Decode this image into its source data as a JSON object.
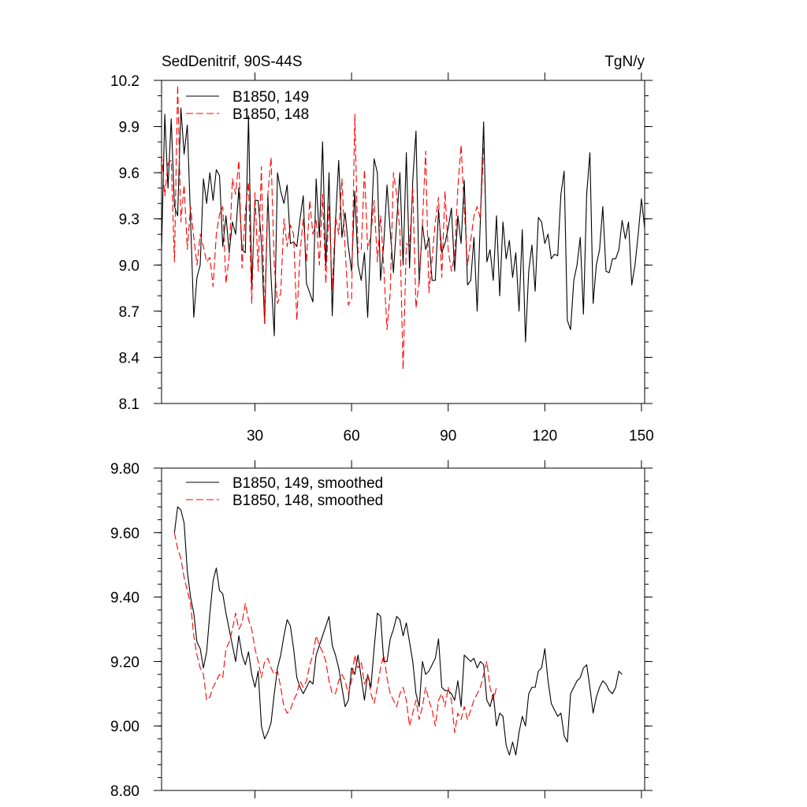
{
  "colors": {
    "black": "#000000",
    "red": "#ff0000",
    "background": "#ffffff"
  },
  "chart_data": [
    {
      "type": "line",
      "title": "SedDenitrif, 90S-44S",
      "units": "TgN/y",
      "xlim": [
        1,
        151
      ],
      "ylim": [
        8.1,
        10.2
      ],
      "x_ticks": [
        30,
        60,
        90,
        120,
        150
      ],
      "x_tick_labels": [
        "30",
        "60",
        "90",
        "120",
        "150"
      ],
      "y_ticks": [
        8.1,
        8.4,
        8.7,
        9.0,
        9.3,
        9.6,
        9.9,
        10.2
      ],
      "y_tick_labels": [
        "8.1",
        "8.4",
        "8.7",
        "9.0",
        "9.3",
        "9.6",
        "9.9",
        "10.2"
      ],
      "legend_position": "top-left",
      "series": [
        {
          "name": "B1850, 149",
          "color": "#000000",
          "dash": "solid",
          "x_start": 1,
          "values": [
            9.1,
            9.98,
            9.5,
            9.95,
            9.38,
            9.32,
            10.02,
            9.72,
            9.91,
            9.3,
            8.66,
            8.92,
            9.0,
            9.56,
            9.4,
            9.6,
            9.42,
            9.62,
            9.58,
            9.12,
            9.32,
            9.08,
            9.28,
            9.2,
            9.5,
            9.1,
            9.08,
            9.97,
            8.86,
            9.42,
            9.42,
            9.15,
            8.62,
            9.46,
            8.92,
            8.54,
            9.6,
            9.48,
            9.4,
            9.52,
            9.14,
            9.15,
            9.12,
            9.3,
            9.45,
            8.88,
            8.82,
            8.76,
            9.56,
            9.18,
            9.8,
            9.0,
            9.6,
            8.67,
            9.28,
            9.68,
            9.18,
            9.34,
            9.12,
            8.96,
            9.48,
            9.0,
            8.9,
            9.08,
            8.66,
            9.2,
            9.69,
            9.6,
            8.9,
            9.14,
            9.52,
            9.22,
            8.95,
            9.28,
            9.6,
            9.0,
            9.73,
            8.98,
            9.55,
            9.87,
            8.88,
            9.26,
            9.1,
            9.18,
            8.9,
            8.9,
            9.36,
            9.08,
            9.14,
            9.24,
            9.37,
            8.96,
            9.32,
            9.14,
            9.55,
            8.87,
            8.9,
            9.18,
            8.7,
            9.3,
            9.93,
            9.02,
            9.1,
            8.9,
            9.32,
            8.8,
            9.28,
            9.04,
            9.16,
            8.92,
            9.08,
            8.7,
            9.23,
            8.5,
            8.96,
            9.13,
            8.83,
            9.31,
            9.28,
            9.14,
            9.2,
            9.04,
            9.07,
            9.06,
            9.46,
            9.61,
            8.64,
            8.58,
            8.9,
            9.0,
            9.18,
            8.68,
            9.46,
            9.73,
            8.75,
            9.0,
            9.1,
            9.38,
            8.96,
            8.95,
            9.04,
            9.04,
            9.1,
            9.29,
            9.17,
            9.28,
            8.87,
            9.0,
            9.2,
            9.43,
            9.24
          ]
        },
        {
          "name": "B1850, 148",
          "color": "#ff0000",
          "dash": "dashed",
          "x_start": 1,
          "values": [
            9.72,
            9.45,
            9.66,
            9.68,
            9.02,
            10.17,
            9.28,
            9.52,
            9.1,
            9.38,
            9.18,
            9.0,
            9.2,
            9.12,
            9.02,
            9.05,
            8.86,
            9.2,
            9.33,
            9.38,
            8.88,
            9.06,
            9.56,
            9.46,
            9.68,
            8.98,
            9.35,
            9.54,
            8.75,
            9.47,
            8.96,
            9.64,
            8.62,
            9.46,
            9.7,
            9.0,
            8.75,
            8.82,
            9.3,
            9.12,
            9.26,
            9.2,
            8.64,
            9.08,
            9.3,
            9.02,
            9.42,
            9.2,
            9.3,
            9.0,
            9.46,
            8.88,
            9.38,
            8.84,
            9.32,
            9.2,
            9.56,
            9.1,
            8.74,
            8.78,
            9.98,
            9.08,
            9.1,
            9.62,
            9.1,
            9.2,
            9.42,
            9.02,
            9.32,
            8.98,
            8.58,
            8.82,
            9.6,
            9.46,
            9.22,
            8.32,
            9.14,
            9.12,
            9.5,
            8.72,
            8.9,
            9.27,
            9.74,
            8.82,
            9.04,
            9.28,
            9.44,
            8.92,
            9.48,
            9.1,
            8.96,
            9.06,
            9.5,
            9.78,
            9.36,
            9.0,
            9.16,
            9.32,
            9.38,
            9.3,
            9.76
          ]
        }
      ]
    },
    {
      "type": "line",
      "xlim": [
        1,
        151
      ],
      "ylim": [
        8.8,
        9.8
      ],
      "y_ticks": [
        8.8,
        9.0,
        9.2,
        9.4,
        9.6,
        9.8
      ],
      "y_tick_labels": [
        "8.80",
        "9.00",
        "9.20",
        "9.40",
        "9.60",
        "9.80"
      ],
      "legend_position": "top-left",
      "series": [
        {
          "name": "B1850, 149, smoothed",
          "color": "#000000",
          "dash": "solid",
          "x_start": 5,
          "values": [
            9.6,
            9.68,
            9.67,
            9.63,
            9.48,
            9.4,
            9.35,
            9.26,
            9.24,
            9.18,
            9.23,
            9.35,
            9.45,
            9.49,
            9.42,
            9.41,
            9.35,
            9.3,
            9.25,
            9.2,
            9.28,
            9.22,
            9.19,
            9.23,
            9.16,
            9.12,
            9.17,
            9.0,
            8.96,
            8.98,
            9.01,
            9.1,
            9.18,
            9.22,
            9.28,
            9.33,
            9.31,
            9.24,
            9.15,
            9.12,
            9.1,
            9.12,
            9.14,
            9.13,
            9.22,
            9.25,
            9.28,
            9.31,
            9.34,
            9.25,
            9.22,
            9.18,
            9.12,
            9.06,
            9.08,
            9.18,
            9.16,
            9.22,
            9.15,
            9.08,
            9.16,
            9.12,
            9.24,
            9.35,
            9.34,
            9.2,
            9.2,
            9.27,
            9.3,
            9.34,
            9.33,
            9.28,
            9.32,
            9.26,
            9.2,
            9.1,
            9.06,
            9.2,
            9.16,
            9.17,
            9.19,
            9.21,
            9.27,
            9.12,
            9.11,
            9.11,
            9.1,
            9.08,
            9.14,
            9.06,
            9.22,
            9.21,
            9.2,
            9.21,
            9.18,
            9.2,
            9.19,
            9.08,
            9.06,
            9.1,
            9.0,
            9.04,
            9.03,
            8.94,
            8.91,
            8.95,
            8.91,
            8.98,
            9.03,
            9.0,
            9.1,
            9.12,
            9.12,
            9.17,
            9.18,
            9.24,
            9.14,
            9.07,
            9.05,
            9.03,
            9.04,
            8.97,
            8.95,
            9.1,
            9.12,
            9.14,
            9.15,
            9.18,
            9.19,
            9.12,
            9.04,
            9.09,
            9.12,
            9.14,
            9.13,
            9.11,
            9.1,
            9.12,
            9.17,
            9.16
          ]
        },
        {
          "name": "B1850, 148, smoothed",
          "color": "#ff0000",
          "dash": "dashed",
          "x_start": 5,
          "values": [
            9.6,
            9.55,
            9.52,
            9.46,
            9.42,
            9.38,
            9.28,
            9.22,
            9.18,
            9.16,
            9.08,
            9.09,
            9.12,
            9.14,
            9.16,
            9.15,
            9.24,
            9.26,
            9.3,
            9.35,
            9.3,
            9.32,
            9.38,
            9.33,
            9.3,
            9.24,
            9.2,
            9.15,
            9.2,
            9.21,
            9.18,
            9.16,
            9.17,
            9.12,
            9.06,
            9.04,
            9.05,
            9.08,
            9.1,
            9.14,
            9.12,
            9.14,
            9.19,
            9.22,
            9.28,
            9.25,
            9.23,
            9.2,
            9.14,
            9.1,
            9.1,
            9.14,
            9.16,
            9.14,
            9.1,
            9.14,
            9.22,
            9.18,
            9.2,
            9.13,
            9.16,
            9.1,
            9.07,
            9.12,
            9.18,
            9.22,
            9.15,
            9.1,
            9.08,
            9.06,
            9.1,
            9.12,
            9.08,
            9.0,
            9.04,
            9.08,
            9.02,
            9.06,
            9.12,
            9.08,
            9.05,
            9.0,
            9.08,
            9.1,
            9.06,
            9.12,
            9.08,
            8.98,
            9.04,
            9.02,
            9.06,
            9.02,
            9.05,
            9.08,
            9.1,
            9.12,
            9.16,
            9.2,
            9.12,
            9.08,
            9.12
          ]
        }
      ]
    }
  ]
}
